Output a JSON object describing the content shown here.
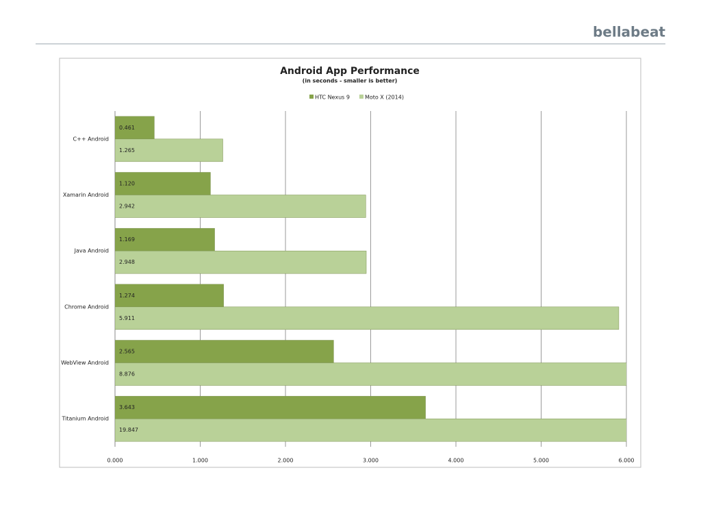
{
  "header": {
    "logo": "bellabeat"
  },
  "chart_data": {
    "type": "barh",
    "title": "Android App Performance",
    "subtitle": "(in seconds - smaller is better)",
    "categories": [
      "C++ Android",
      "Xamarin Android",
      "Java Android",
      "Chrome Android",
      "WebView Android",
      "Titanium Android"
    ],
    "series": [
      {
        "name": "HTC Nexus 9",
        "color": "#86a34a",
        "values": [
          0.461,
          1.12,
          1.169,
          1.274,
          2.565,
          3.643
        ],
        "value_labels": [
          "0.461",
          "1.120",
          "1.169",
          "1.274",
          "2.565",
          "3.643"
        ]
      },
      {
        "name": "Moto X (2014)",
        "color": "#b9d198",
        "values": [
          1.265,
          2.942,
          2.948,
          5.911,
          8.876,
          19.847
        ],
        "value_labels": [
          "1.265",
          "2.942",
          "2.948",
          "5.911",
          "8.876",
          "19.847"
        ]
      }
    ],
    "xlim": [
      0,
      6
    ],
    "xticks": [
      {
        "value": 0,
        "label": "0.000"
      },
      {
        "value": 1,
        "label": "1.000"
      },
      {
        "value": 2,
        "label": "2.000"
      },
      {
        "value": 3,
        "label": "3.000"
      },
      {
        "value": 4,
        "label": "4.000"
      },
      {
        "value": 5,
        "label": "5.000"
      },
      {
        "value": 6,
        "label": "6.000"
      }
    ],
    "grid": true,
    "legend": "top"
  }
}
